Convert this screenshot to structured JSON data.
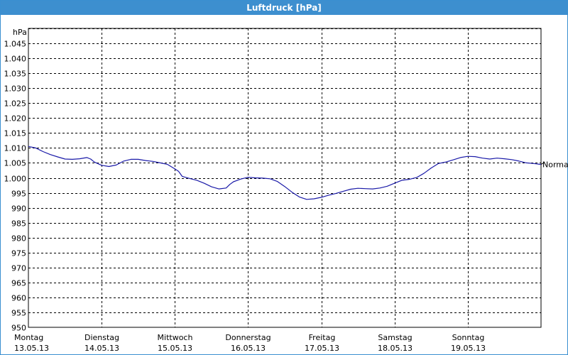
{
  "window": {
    "title": "Luftdruck [hPa]"
  },
  "colors": {
    "titlebar": "#3d8fcf",
    "line": "#1a1aa8",
    "grid": "#000000"
  },
  "chart_data": {
    "type": "line",
    "title": "Luftdruck [hPa]",
    "ylabel": "hPa",
    "xlabel": "",
    "ylim": [
      950,
      1050
    ],
    "xlim": [
      0,
      7
    ],
    "grid": true,
    "y_ticks": [
      "950",
      "955",
      "960",
      "965",
      "970",
      "975",
      "980",
      "985",
      "990",
      "995",
      "1.000",
      "1.005",
      "1.010",
      "1.015",
      "1.020",
      "1.025",
      "1.030",
      "1.035",
      "1.040",
      "1.045"
    ],
    "x_ticks": [
      {
        "day": "Montag",
        "date": "13.05.13"
      },
      {
        "day": "Dienstag",
        "date": "14.05.13"
      },
      {
        "day": "Mittwoch",
        "date": "15.05.13"
      },
      {
        "day": "Donnerstag",
        "date": "16.05.13"
      },
      {
        "day": "Freitag",
        "date": "17.05.13"
      },
      {
        "day": "Samstag",
        "date": "18.05.13"
      },
      {
        "day": "Sonntag",
        "date": "19.05.13"
      }
    ],
    "reference_label": "Normal",
    "reference_value": 1004.5,
    "series": [
      {
        "x": [
          0,
          0.1,
          0.2,
          0.3,
          0.4,
          0.5,
          0.6,
          0.7,
          0.8,
          0.85,
          0.9,
          1.0,
          1.1,
          1.2,
          1.3,
          1.4,
          1.5,
          1.6,
          1.7,
          1.8,
          1.9,
          2.0,
          2.05,
          2.1,
          2.2,
          2.3,
          2.4,
          2.5,
          2.6,
          2.7,
          2.75,
          2.8,
          2.9,
          3.0,
          3.1,
          3.2,
          3.3,
          3.4,
          3.5,
          3.6,
          3.7,
          3.8,
          3.9,
          4.0,
          4.1,
          4.2,
          4.3,
          4.4,
          4.5,
          4.6,
          4.7,
          4.8,
          4.9,
          5.0,
          5.1,
          5.2,
          5.3,
          5.4,
          5.5,
          5.6,
          5.7,
          5.8,
          5.9,
          6.0,
          6.1,
          6.2,
          6.3,
          6.4,
          6.5,
          6.6,
          6.7,
          6.8,
          6.9,
          7.0
        ],
        "y": [
          1010.5,
          1010,
          1008.8,
          1007.8,
          1007,
          1006.3,
          1006.2,
          1006.4,
          1006.8,
          1006.3,
          1005.3,
          1004.2,
          1003.8,
          1004.3,
          1005.6,
          1006.2,
          1006.2,
          1005.8,
          1005.5,
          1005,
          1004.5,
          1003,
          1002.2,
          1000.5,
          999.8,
          999.2,
          998.2,
          997,
          996.3,
          996.6,
          997.8,
          998.7,
          999.6,
          1000.2,
          1000,
          999.9,
          999.7,
          998.8,
          997.1,
          995.2,
          993.6,
          992.8,
          993,
          993.5,
          994.2,
          994.8,
          995.5,
          996.2,
          996.5,
          996.4,
          996.3,
          996.6,
          997.2,
          998.2,
          999.2,
          999.5,
          1000.1,
          1001.5,
          1003.3,
          1004.8,
          1005.3,
          1006,
          1006.8,
          1007.2,
          1007.1,
          1006.6,
          1006.3,
          1006.6,
          1006.4,
          1006.1,
          1005.6,
          1005,
          1004.8,
          1004.5
        ]
      }
    ]
  }
}
